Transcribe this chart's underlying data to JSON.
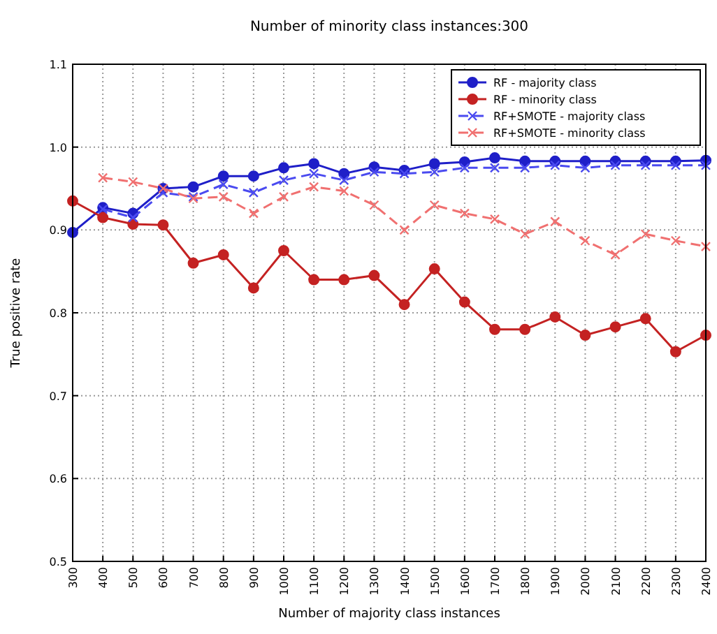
{
  "chart_data": {
    "type": "line",
    "title": "Number of minority class instances:300",
    "xlabel": "Number of majority class instances",
    "ylabel": "True positive rate",
    "x": [
      300,
      400,
      500,
      600,
      700,
      800,
      900,
      1000,
      1100,
      1200,
      1300,
      1400,
      1500,
      1600,
      1700,
      1800,
      1900,
      2000,
      2100,
      2200,
      2300,
      2400
    ],
    "xlim": [
      300,
      2400
    ],
    "xticks": [
      300,
      400,
      500,
      600,
      700,
      800,
      900,
      1000,
      1100,
      1200,
      1300,
      1400,
      1500,
      1600,
      1700,
      1800,
      1900,
      2000,
      2100,
      2200,
      2300,
      2400
    ],
    "ylim": [
      0.5,
      1.1
    ],
    "yticks": [
      0.5,
      0.6,
      0.7,
      0.8,
      0.9,
      {
        "value": 1,
        "label": "1.0"
      },
      1.1
    ],
    "grid": true,
    "legend": "top right",
    "series": [
      {
        "name": "RF - majority class",
        "color": "#1f1fc8",
        "marker": "circle",
        "line_style": "solid",
        "values": [
          0.897,
          0.927,
          0.92,
          0.95,
          0.952,
          0.965,
          0.965,
          0.975,
          0.98,
          0.968,
          0.976,
          0.972,
          0.98,
          0.982,
          0.987,
          0.983,
          0.983,
          0.983,
          0.983,
          0.983,
          0.983,
          0.984
        ]
      },
      {
        "name": "RF - minority class",
        "color": "#c42222",
        "marker": "circle",
        "line_style": "solid",
        "values": [
          0.935,
          0.915,
          0.907,
          0.906,
          0.86,
          0.87,
          0.83,
          0.875,
          0.84,
          0.84,
          0.845,
          0.81,
          0.853,
          0.813,
          0.78,
          0.78,
          0.795,
          0.773,
          0.783,
          0.793,
          0.753,
          0.773
        ]
      },
      {
        "name": "RF+SMOTE - majority class",
        "color": "#4a4af0",
        "marker": "cross",
        "line_style": "dashed",
        "values": [
          null,
          0.925,
          0.915,
          0.945,
          0.94,
          0.955,
          0.945,
          0.96,
          0.968,
          0.96,
          0.97,
          0.968,
          0.97,
          0.975,
          0.975,
          0.975,
          0.978,
          0.975,
          0.978,
          0.978,
          0.978,
          0.978
        ]
      },
      {
        "name": "RF+SMOTE - minority class",
        "color": "#f07070",
        "marker": "cross",
        "line_style": "dashed",
        "values": [
          null,
          0.963,
          0.958,
          0.95,
          0.938,
          0.94,
          0.92,
          0.94,
          0.952,
          0.947,
          0.93,
          0.9,
          0.93,
          0.92,
          0.913,
          0.895,
          0.91,
          0.887,
          0.87,
          0.895,
          0.887,
          0.88
        ]
      }
    ]
  }
}
